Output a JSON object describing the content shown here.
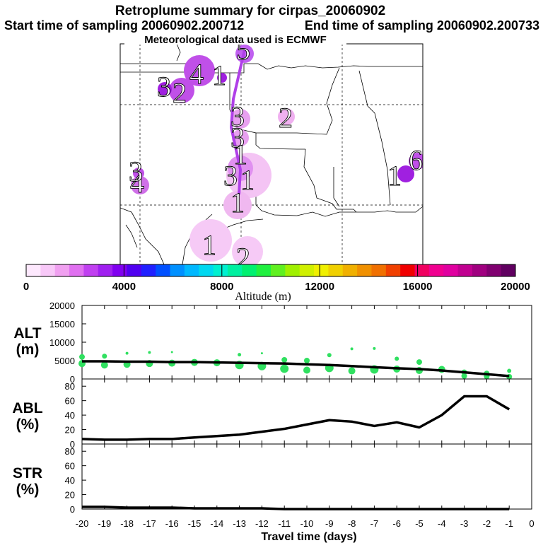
{
  "header": {
    "title": "Retroplume summary for cirpas_20060902",
    "start_label": "Start time of sampling 20060902.200712",
    "end_label": "End time of sampling 20060902.200733",
    "met_label": "Meteorological data used is ECMWF"
  },
  "map": {
    "plume_color": "#b040e8",
    "labels": [
      {
        "text": "4"
      },
      {
        "text": "1"
      },
      {
        "text": "3"
      },
      {
        "text": "2"
      },
      {
        "text": "5"
      },
      {
        "text": "3"
      },
      {
        "text": "2"
      },
      {
        "text": "3"
      },
      {
        "text": "1"
      },
      {
        "text": "3"
      },
      {
        "text": "1"
      },
      {
        "text": "1"
      },
      {
        "text": "4"
      },
      {
        "text": "3"
      },
      {
        "text": "1"
      },
      {
        "text": "6"
      },
      {
        "text": "1"
      },
      {
        "text": "2"
      }
    ]
  },
  "colorbar": {
    "min": 0,
    "max": 20000,
    "tick_labels": [
      "0",
      "4000",
      "8000",
      "12000",
      "16000",
      "20000"
    ],
    "label": "Altitude (m)",
    "colors": [
      "#fde8fd",
      "#f8c8f8",
      "#f0a0f0",
      "#e070f0",
      "#c040f0",
      "#a020f0",
      "#8000f0",
      "#5000f0",
      "#2020ff",
      "#0050ff",
      "#0090ff",
      "#00b8ff",
      "#00d8f0",
      "#00f0d0",
      "#00f0a0",
      "#00f070",
      "#20f040",
      "#60f020",
      "#a0f000",
      "#d0f000",
      "#f0f000",
      "#f0d000",
      "#f0b000",
      "#f09000",
      "#f07000",
      "#f04000",
      "#f00000",
      "#f00060",
      "#f00090",
      "#e000a0",
      "#c00090",
      "#a00080",
      "#800070",
      "#600060"
    ]
  },
  "chart_data": [
    {
      "type": "line",
      "title": "ALT (m)",
      "ylabel_line1": "ALT",
      "ylabel_line2": "(m)",
      "x": [
        -20,
        -19,
        -18,
        -17,
        -16,
        -15,
        -14,
        -13,
        -12,
        -11,
        -10,
        -9,
        -8,
        -7,
        -6,
        -5,
        -4,
        -3,
        -2,
        -1
      ],
      "series": [
        {
          "name": "median altitude",
          "values": [
            4800,
            4800,
            4700,
            4700,
            4600,
            4600,
            4500,
            4400,
            4300,
            4200,
            4000,
            3800,
            3500,
            3200,
            2900,
            2700,
            2300,
            1800,
            1300,
            800
          ]
        }
      ],
      "scatter_series": [
        {
          "name": "altitude spread",
          "x": [
            -20,
            -20,
            -19,
            -19,
            -18,
            -18,
            -17,
            -17,
            -16,
            -16,
            -15,
            -14,
            -13,
            -13,
            -12,
            -12,
            -11,
            -11,
            -10,
            -10,
            -9,
            -9,
            -8,
            -8,
            -7,
            -7,
            -6,
            -6,
            -5,
            -5,
            -4,
            -3,
            -3,
            -2,
            -2,
            -1,
            -1
          ],
          "y": [
            6000,
            4200,
            6200,
            3800,
            7000,
            4000,
            7200,
            4200,
            7300,
            4300,
            4500,
            4400,
            6600,
            3800,
            7000,
            3500,
            5200,
            2800,
            5000,
            2400,
            6500,
            3000,
            8200,
            2200,
            8300,
            2600,
            5500,
            2700,
            4600,
            2300,
            2600,
            1800,
            800,
            1500,
            700,
            2200,
            600
          ],
          "size": [
            8,
            10,
            7,
            10,
            4,
            10,
            4,
            10,
            3,
            10,
            10,
            10,
            5,
            12,
            3,
            12,
            8,
            12,
            8,
            10,
            6,
            12,
            4,
            10,
            4,
            12,
            6,
            10,
            8,
            10,
            10,
            8,
            8,
            8,
            8,
            6,
            8
          ]
        }
      ],
      "xlim": [
        -20,
        0
      ],
      "ylim": [
        0,
        20000
      ],
      "yticks": [
        "0",
        "5000",
        "10000",
        "15000",
        "20000"
      ]
    },
    {
      "type": "line",
      "title": "ABL (%)",
      "ylabel_line1": "ABL",
      "ylabel_line2": "(%)",
      "x": [
        -20,
        -19,
        -18,
        -17,
        -16,
        -15,
        -14,
        -13,
        -12,
        -11,
        -10,
        -9,
        -8,
        -7,
        -6,
        -5,
        -4,
        -3,
        -2,
        -1
      ],
      "series": [
        {
          "name": "fraction in ABL",
          "values": [
            7,
            6,
            6,
            7,
            7,
            9,
            11,
            13,
            17,
            21,
            27,
            33,
            31,
            25,
            30,
            23,
            40,
            66,
            66,
            48
          ]
        }
      ],
      "xlim": [
        -20,
        0
      ],
      "ylim": [
        0,
        90
      ],
      "yticks": [
        "0",
        "20",
        "40",
        "60",
        "80"
      ]
    },
    {
      "type": "line",
      "title": "STR (%)",
      "ylabel_line1": "STR",
      "ylabel_line2": "(%)",
      "x": [
        -20,
        -19,
        -18,
        -17,
        -16,
        -15,
        -14,
        -13,
        -12,
        -11,
        -10,
        -9,
        -8,
        -7,
        -6,
        -5,
        -4,
        -3,
        -2,
        -1
      ],
      "series": [
        {
          "name": "fraction in stratosphere",
          "values": [
            3,
            3,
            2,
            2,
            2,
            1,
            1,
            1,
            1,
            0,
            0,
            0,
            0,
            0,
            0,
            0,
            0,
            0,
            0,
            0
          ]
        }
      ],
      "xlim": [
        -20,
        0
      ],
      "ylim": [
        0,
        90
      ],
      "yticks": [
        "0",
        "20",
        "40",
        "60",
        "80"
      ],
      "xlabel": "Travel time (days)",
      "xticks": [
        "-20",
        "-19",
        "-18",
        "-17",
        "-16",
        "-15",
        "-14",
        "-13",
        "-12",
        "-11",
        "-10",
        "-9",
        "-8",
        "-7",
        "-6",
        "-5",
        "-4",
        "-3",
        "-2",
        "-1",
        "0"
      ]
    }
  ]
}
